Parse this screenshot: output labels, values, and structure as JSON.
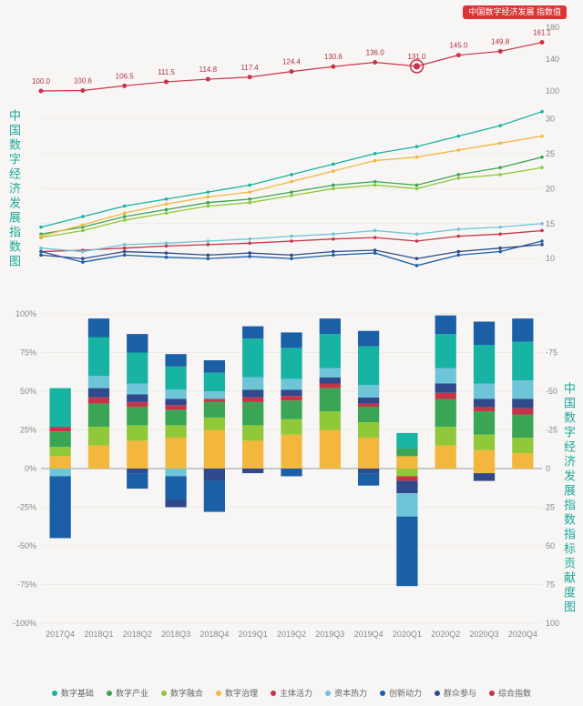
{
  "badge_text": "中国数字经济发展\n指数值",
  "title_top": "中国数字经济发展指数图",
  "title_bottom": "中国数字经济发展指数指标贡献度图",
  "categories": [
    "2017Q4",
    "2018Q1",
    "2018Q2",
    "2018Q3",
    "2018Q4",
    "2019Q1",
    "2019Q2",
    "2019Q3",
    "2019Q4",
    "2020Q1",
    "2020Q2",
    "2020Q3",
    "2020Q4"
  ],
  "top_chart": {
    "y_right": {
      "min": 100,
      "max": 180,
      "step": 10
    },
    "y_left": {
      "min": 6,
      "max": 32,
      "step": 5
    },
    "index_line": {
      "color": "#c9334a",
      "values": [
        100.0,
        100.6,
        106.5,
        111.5,
        114.8,
        117.4,
        124.4,
        130.6,
        136.0,
        131.0,
        145.0,
        149.8,
        161.1
      ],
      "highlight_idx": 9
    },
    "series": [
      {
        "name": "数字基础",
        "color": "#17b3a3",
        "values": [
          14.5,
          16.0,
          17.5,
          18.5,
          19.5,
          20.5,
          22.0,
          23.5,
          25.0,
          26.0,
          27.5,
          29.0,
          31.0
        ]
      },
      {
        "name": "数字产业",
        "color": "#3aa655",
        "values": [
          13.5,
          14.5,
          16.0,
          17.0,
          18.0,
          18.5,
          19.5,
          20.5,
          21.0,
          20.5,
          22.0,
          23.0,
          24.5
        ]
      },
      {
        "name": "数字融合",
        "color": "#8fc93a",
        "values": [
          13.0,
          14.0,
          15.5,
          16.5,
          17.5,
          18.0,
          19.0,
          20.0,
          20.5,
          20.0,
          21.5,
          22.0,
          23.0
        ]
      },
      {
        "name": "数字治理",
        "color": "#f3b73e",
        "values": [
          13.2,
          14.8,
          16.5,
          17.8,
          18.8,
          19.5,
          21.0,
          22.5,
          24.0,
          24.5,
          25.5,
          26.5,
          27.5
        ]
      },
      {
        "name": "主体活力",
        "color": "#c9334a",
        "values": [
          11.0,
          11.2,
          11.5,
          11.8,
          12.0,
          12.2,
          12.5,
          12.8,
          13.0,
          12.5,
          13.2,
          13.5,
          14.0
        ]
      },
      {
        "name": "资本热力",
        "color": "#6ec5d8",
        "values": [
          11.5,
          11.0,
          12.0,
          12.2,
          12.5,
          12.8,
          13.2,
          13.5,
          14.0,
          13.5,
          14.2,
          14.5,
          15.0
        ]
      },
      {
        "name": "创新动力",
        "color": "#1b5fa6",
        "values": [
          11.0,
          9.5,
          10.5,
          10.2,
          10.0,
          10.3,
          10.0,
          10.5,
          10.8,
          9.0,
          10.5,
          11.0,
          12.5
        ]
      },
      {
        "name": "群众参与",
        "color": "#2e4a8c",
        "values": [
          10.5,
          10.0,
          11.0,
          10.8,
          10.5,
          10.8,
          10.5,
          11.0,
          11.2,
          10.0,
          11.0,
          11.5,
          12.0
        ]
      }
    ]
  },
  "bottom_chart": {
    "y": {
      "min": -100,
      "max": 100,
      "step": 25
    },
    "colors": {
      "数字基础": "#17b3a3",
      "数字产业": "#3aa655",
      "数字融合": "#8fc93a",
      "数字治理": "#f3b73e",
      "主体活力": "#c9334a",
      "资本热力": "#6ec5d8",
      "创新动力": "#1b5fa6",
      "群众参与": "#2e4a8c"
    },
    "stacks": [
      {
        "pos": [
          [
            "数字治理",
            8
          ],
          [
            "数字融合",
            6
          ],
          [
            "数字产业",
            10
          ],
          [
            "主体活力",
            3
          ],
          [
            "数字基础",
            25
          ]
        ],
        "neg": [
          [
            "资本热力",
            -5
          ],
          [
            "创新动力",
            -40
          ]
        ]
      },
      {
        "pos": [
          [
            "数字治理",
            15
          ],
          [
            "数字融合",
            12
          ],
          [
            "数字产业",
            15
          ],
          [
            "主体活力",
            4
          ],
          [
            "群众参与",
            6
          ],
          [
            "资本热力",
            8
          ],
          [
            "数字基础",
            25
          ],
          [
            "创新动力",
            12
          ]
        ],
        "neg": []
      },
      {
        "pos": [
          [
            "数字治理",
            18
          ],
          [
            "数字融合",
            10
          ],
          [
            "数字产业",
            12
          ],
          [
            "主体活力",
            3
          ],
          [
            "群众参与",
            5
          ],
          [
            "资本热力",
            7
          ],
          [
            "数字基础",
            20
          ],
          [
            "创新动力",
            12
          ]
        ],
        "neg": [
          [
            "群众参与",
            -3
          ],
          [
            "创新动力",
            -10
          ]
        ]
      },
      {
        "pos": [
          [
            "数字治理",
            20
          ],
          [
            "数字融合",
            8
          ],
          [
            "数字产业",
            10
          ],
          [
            "主体活力",
            3
          ],
          [
            "群众参与",
            4
          ],
          [
            "资本热力",
            6
          ],
          [
            "数字基础",
            15
          ],
          [
            "创新动力",
            8
          ]
        ],
        "neg": [
          [
            "资本热力",
            -5
          ],
          [
            "创新动力",
            -15
          ],
          [
            "群众参与",
            -5
          ]
        ]
      },
      {
        "pos": [
          [
            "数字治理",
            25
          ],
          [
            "数字融合",
            8
          ],
          [
            "数字产业",
            10
          ],
          [
            "主体活力",
            2
          ],
          [
            "资本热力",
            5
          ],
          [
            "数字基础",
            12
          ],
          [
            "创新动力",
            8
          ]
        ],
        "neg": [
          [
            "群众参与",
            -8
          ],
          [
            "创新动力",
            -20
          ]
        ]
      },
      {
        "pos": [
          [
            "数字治理",
            18
          ],
          [
            "数字融合",
            10
          ],
          [
            "数字产业",
            15
          ],
          [
            "主体活力",
            3
          ],
          [
            "群众参与",
            5
          ],
          [
            "资本热力",
            8
          ],
          [
            "数字基础",
            25
          ],
          [
            "创新动力",
            8
          ]
        ],
        "neg": [
          [
            "群众参与",
            -3
          ]
        ]
      },
      {
        "pos": [
          [
            "数字治理",
            22
          ],
          [
            "数字融合",
            10
          ],
          [
            "数字产业",
            12
          ],
          [
            "主体活力",
            3
          ],
          [
            "群众参与",
            4
          ],
          [
            "资本热力",
            7
          ],
          [
            "数字基础",
            20
          ],
          [
            "创新动力",
            10
          ]
        ],
        "neg": [
          [
            "创新动力",
            -5
          ]
        ]
      },
      {
        "pos": [
          [
            "数字治理",
            25
          ],
          [
            "数字融合",
            12
          ],
          [
            "数字产业",
            15
          ],
          [
            "主体活力",
            3
          ],
          [
            "群众参与",
            4
          ],
          [
            "资本热力",
            6
          ],
          [
            "数字基础",
            22
          ],
          [
            "创新动力",
            10
          ]
        ],
        "neg": []
      },
      {
        "pos": [
          [
            "数字治理",
            20
          ],
          [
            "数字融合",
            10
          ],
          [
            "数字产业",
            10
          ],
          [
            "主体活力",
            2
          ],
          [
            "群众参与",
            4
          ],
          [
            "资本热力",
            8
          ],
          [
            "数字基础",
            25
          ],
          [
            "创新动力",
            10
          ]
        ],
        "neg": [
          [
            "群众参与",
            -3
          ],
          [
            "创新动力",
            -8
          ]
        ]
      },
      {
        "pos": [
          [
            "数字治理",
            8
          ],
          [
            "数字产业",
            5
          ],
          [
            "数字基础",
            10
          ]
        ],
        "neg": [
          [
            "数字融合",
            -5
          ],
          [
            "主体活力",
            -3
          ],
          [
            "群众参与",
            -8
          ],
          [
            "资本热力",
            -15
          ],
          [
            "创新动力",
            -45
          ]
        ]
      },
      {
        "pos": [
          [
            "数字治理",
            15
          ],
          [
            "数字融合",
            12
          ],
          [
            "数字产业",
            18
          ],
          [
            "主体活力",
            4
          ],
          [
            "群众参与",
            6
          ],
          [
            "资本热力",
            10
          ],
          [
            "数字基础",
            22
          ],
          [
            "创新动力",
            12
          ]
        ],
        "neg": []
      },
      {
        "pos": [
          [
            "数字治理",
            12
          ],
          [
            "数字融合",
            10
          ],
          [
            "数字产业",
            15
          ],
          [
            "主体活力",
            3
          ],
          [
            "群众参与",
            5
          ],
          [
            "资本热力",
            10
          ],
          [
            "数字基础",
            25
          ],
          [
            "创新动力",
            15
          ]
        ],
        "neg": [
          [
            "数字治理",
            -3
          ],
          [
            "群众参与",
            -5
          ]
        ]
      },
      {
        "pos": [
          [
            "数字治理",
            10
          ],
          [
            "数字融合",
            10
          ],
          [
            "数字产业",
            15
          ],
          [
            "主体活力",
            4
          ],
          [
            "群众参与",
            6
          ],
          [
            "资本热力",
            12
          ],
          [
            "数字基础",
            25
          ],
          [
            "创新动力",
            15
          ]
        ],
        "neg": []
      }
    ]
  },
  "legend_items": [
    {
      "label": "数字基础",
      "color": "#17b3a3"
    },
    {
      "label": "数字产业",
      "color": "#3aa655"
    },
    {
      "label": "数字融合",
      "color": "#8fc93a"
    },
    {
      "label": "数字治理",
      "color": "#f3b73e"
    },
    {
      "label": "主体活力",
      "color": "#c9334a"
    },
    {
      "label": "资本热力",
      "color": "#6ec5d8"
    },
    {
      "label": "创新动力",
      "color": "#1b5fa6"
    },
    {
      "label": "群众参与",
      "color": "#2e4a8c"
    },
    {
      "label": "综合指数",
      "color": "#c9334a"
    }
  ]
}
